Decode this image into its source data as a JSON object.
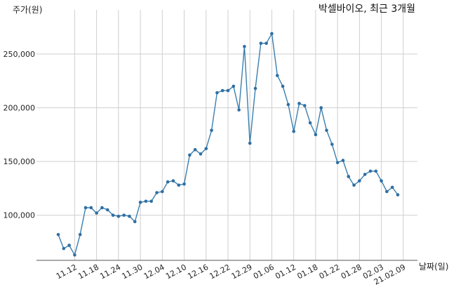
{
  "chart_data": {
    "type": "line",
    "title": "박셀바이오, 최근 3개월",
    "ylabel": "주가(원)",
    "xlabel": "날짜(일)",
    "ylim": [
      58000,
      282000
    ],
    "yticks": [
      100000,
      150000,
      200000,
      250000
    ],
    "ytick_labels": [
      "100,000",
      "150,000",
      "200,000",
      "250,000"
    ],
    "x_tick_labels": [
      "11.12",
      "11.18",
      "11.24",
      "11.30",
      "12.04",
      "12.10",
      "12.16",
      "12.22",
      "12.29",
      "01.06",
      "01.12",
      "01.18",
      "01.22",
      "01.28",
      "02.03",
      "21.02.09"
    ],
    "x_tick_index": [
      3,
      7,
      11,
      15,
      19,
      23,
      27,
      31,
      35,
      39,
      43,
      47,
      51,
      55,
      59,
      63
    ],
    "grid": true,
    "series": [
      {
        "values": [
          82000,
          69000,
          72000,
          63000,
          82000,
          107000,
          107000,
          102000,
          107000,
          105000,
          100000,
          99000,
          100000,
          99000,
          94000,
          112000,
          113000,
          113000,
          121000,
          122000,
          131000,
          132000,
          128000,
          129000,
          156000,
          161000,
          157000,
          162000,
          179000,
          214000,
          216000,
          216000,
          220000,
          198000,
          257000,
          167000,
          218000,
          260000,
          260000,
          269000,
          230000,
          220000,
          203000,
          178000,
          204000,
          202000,
          186000,
          175000,
          200000,
          179000,
          166000,
          149000,
          151000,
          136000,
          128000,
          132000,
          138000,
          141000,
          141000,
          132000,
          122000,
          126000,
          119000
        ]
      }
    ]
  }
}
